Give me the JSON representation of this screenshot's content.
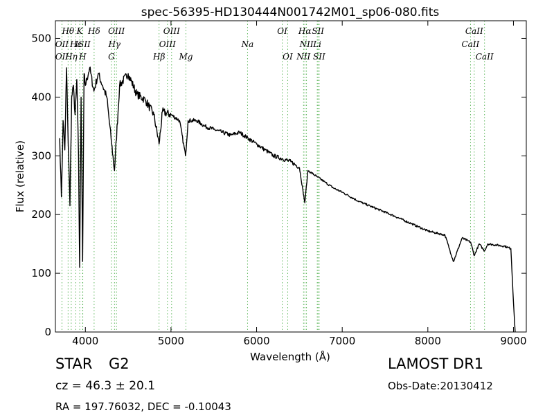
{
  "chart_data": {
    "type": "line",
    "title": "spec-56395-HD130444N001742M01_sp06-080.fits",
    "xlabel": "Wavelength (Å)",
    "ylabel": "Flux (relative)",
    "xlim": [
      3650,
      9150
    ],
    "ylim": [
      0,
      530
    ],
    "xticks": [
      4000,
      5000,
      6000,
      7000,
      8000,
      9000
    ],
    "yticks": [
      0,
      100,
      200,
      300,
      400,
      500
    ],
    "grid": false,
    "series": [
      {
        "x": [
          3700,
          3720,
          3740,
          3760,
          3780,
          3800,
          3820,
          3840,
          3860,
          3880,
          3900,
          3920,
          3933,
          3950,
          3968,
          3985,
          4000,
          4050,
          4100,
          4150,
          4200,
          4250,
          4300,
          4340,
          4400,
          4500,
          4600,
          4700,
          4800,
          4861,
          4900,
          5000,
          5100,
          5170,
          5200,
          5300,
          5400,
          5500,
          5600,
          5700,
          5800,
          5900,
          6000,
          6100,
          6200,
          6300,
          6400,
          6500,
          6563,
          6600,
          6700,
          6800,
          6900,
          7000,
          7200,
          7400,
          7600,
          7800,
          8000,
          8200,
          8300,
          8400,
          8500,
          8542,
          8600,
          8662,
          8700,
          8800,
          8900,
          8970,
          9000,
          9020
        ],
        "y": [
          330,
          230,
          360,
          310,
          450,
          320,
          215,
          400,
          420,
          370,
          430,
          300,
          110,
          400,
          120,
          440,
          420,
          450,
          410,
          440,
          420,
          400,
          330,
          275,
          420,
          440,
          405,
          395,
          370,
          320,
          375,
          370,
          360,
          300,
          360,
          360,
          350,
          345,
          340,
          335,
          340,
          330,
          320,
          310,
          300,
          295,
          290,
          280,
          220,
          275,
          265,
          255,
          245,
          238,
          222,
          210,
          198,
          185,
          172,
          165,
          120,
          160,
          153,
          130,
          150,
          138,
          150,
          148,
          146,
          142,
          50,
          0
        ]
      }
    ],
    "lines": [
      {
        "label": "Hθ",
        "x": 3798,
        "row": 0
      },
      {
        "label": "OII",
        "x": 3727,
        "row": 1
      },
      {
        "label": "OII",
        "x": 3727,
        "row": 2
      },
      {
        "label": "Hη",
        "x": 3835,
        "row": 2
      },
      {
        "label": "K",
        "x": 3934,
        "row": 0
      },
      {
        "label": "Hε",
        "x": 3889,
        "row": 1
      },
      {
        "label": "ISII",
        "x": 3970,
        "row": 1
      },
      {
        "label": "H",
        "x": 3968,
        "row": 2
      },
      {
        "label": "Hδ",
        "x": 4102,
        "row": 0
      },
      {
        "label": "OIII",
        "x": 4363,
        "row": 0
      },
      {
        "label": "Hγ",
        "x": 4340,
        "row": 1
      },
      {
        "label": "G",
        "x": 4304,
        "row": 2
      },
      {
        "label": "OIII",
        "x": 5007,
        "row": 0
      },
      {
        "label": "OIII",
        "x": 4959,
        "row": 1
      },
      {
        "label": "Hβ",
        "x": 4861,
        "row": 2
      },
      {
        "label": "Mg",
        "x": 5175,
        "row": 2
      },
      {
        "label": "Na",
        "x": 5894,
        "row": 1
      },
      {
        "label": "OI",
        "x": 6300,
        "row": 0
      },
      {
        "label": "OI",
        "x": 6363,
        "row": 2
      },
      {
        "label": "Hα",
        "x": 6563,
        "row": 0
      },
      {
        "label": "SII",
        "x": 6717,
        "row": 0
      },
      {
        "label": "NII",
        "x": 6583,
        "row": 1
      },
      {
        "label": "Li",
        "x": 6708,
        "row": 1
      },
      {
        "label": "NII",
        "x": 6548,
        "row": 2
      },
      {
        "label": "SII",
        "x": 6731,
        "row": 2
      },
      {
        "label": "CaII",
        "x": 8542,
        "row": 0
      },
      {
        "label": "CaII",
        "x": 8498,
        "row": 1
      },
      {
        "label": "CaII",
        "x": 8662,
        "row": 2
      }
    ]
  },
  "info": {
    "class": "STAR",
    "subclass": "G2",
    "cz": "cz = 46.3 ± 20.1",
    "radec": "RA = 197.76032, DEC = -0.10043",
    "survey": "LAMOST DR1",
    "obsdate": "Obs-Date:20130412"
  }
}
